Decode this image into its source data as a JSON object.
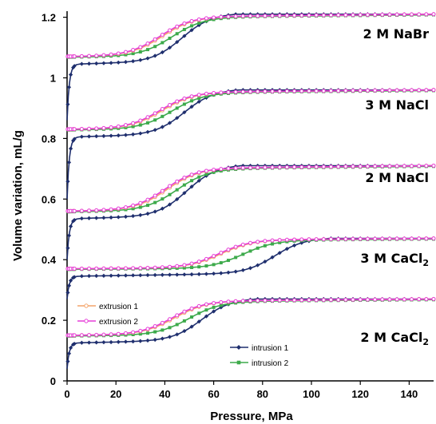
{
  "chart_data": {
    "type": "line",
    "xlabel": "Pressure, MPa",
    "ylabel": "Volume variation, mL/g",
    "xlim": [
      0,
      150
    ],
    "ylim": [
      0,
      1.22
    ],
    "x_ticks": [
      "0",
      "20",
      "40",
      "60",
      "80",
      "100",
      "120",
      "140"
    ],
    "y_ticks": [
      "0",
      "0.2",
      "0.4",
      "0.6",
      "0.8",
      "1",
      "1.2"
    ],
    "grid": false,
    "legend_groups": [
      {
        "position": "left-lower",
        "items": [
          {
            "name": "extrusion 1",
            "color": "#F4A46A",
            "marker": "circle"
          },
          {
            "name": "extrusion 2",
            "color": "#E63FD8",
            "marker": "circle"
          }
        ]
      },
      {
        "position": "center-lower",
        "items": [
          {
            "name": "intrusion 1",
            "color": "#1F2F6E",
            "marker": "diamond"
          },
          {
            "name": "intrusion 2",
            "color": "#3DAA4B",
            "marker": "square"
          }
        ]
      }
    ],
    "curves": [
      {
        "label_main": "2 M NaBr",
        "label_sub": "",
        "base": 1.07,
        "top": 1.21,
        "intrusion_start": 0.86,
        "ext_mid": 38,
        "int2_mid": 43,
        "int1_mid": 47
      },
      {
        "label_main": "3 M NaCl",
        "label_sub": "",
        "base": 0.83,
        "top": 0.96,
        "intrusion_start": 0.6,
        "ext_mid": 38,
        "int2_mid": 43,
        "int1_mid": 48
      },
      {
        "label_main": "2 M NaCl",
        "label_sub": "",
        "base": 0.56,
        "top": 0.71,
        "intrusion_start": 0.4,
        "ext_mid": 40,
        "int2_mid": 45,
        "int1_mid": 49
      },
      {
        "label_main": "3 M CaCl",
        "label_sub": "2",
        "base": 0.37,
        "top": 0.47,
        "intrusion_start": 0.27,
        "ext_mid": 62,
        "int2_mid": 72,
        "int1_mid": 85
      },
      {
        "label_main": "2 M CaCl",
        "label_sub": "2",
        "base": 0.15,
        "top": 0.27,
        "intrusion_start": 0.04,
        "ext_mid": 43,
        "int2_mid": 50,
        "int1_mid": 55
      }
    ]
  }
}
